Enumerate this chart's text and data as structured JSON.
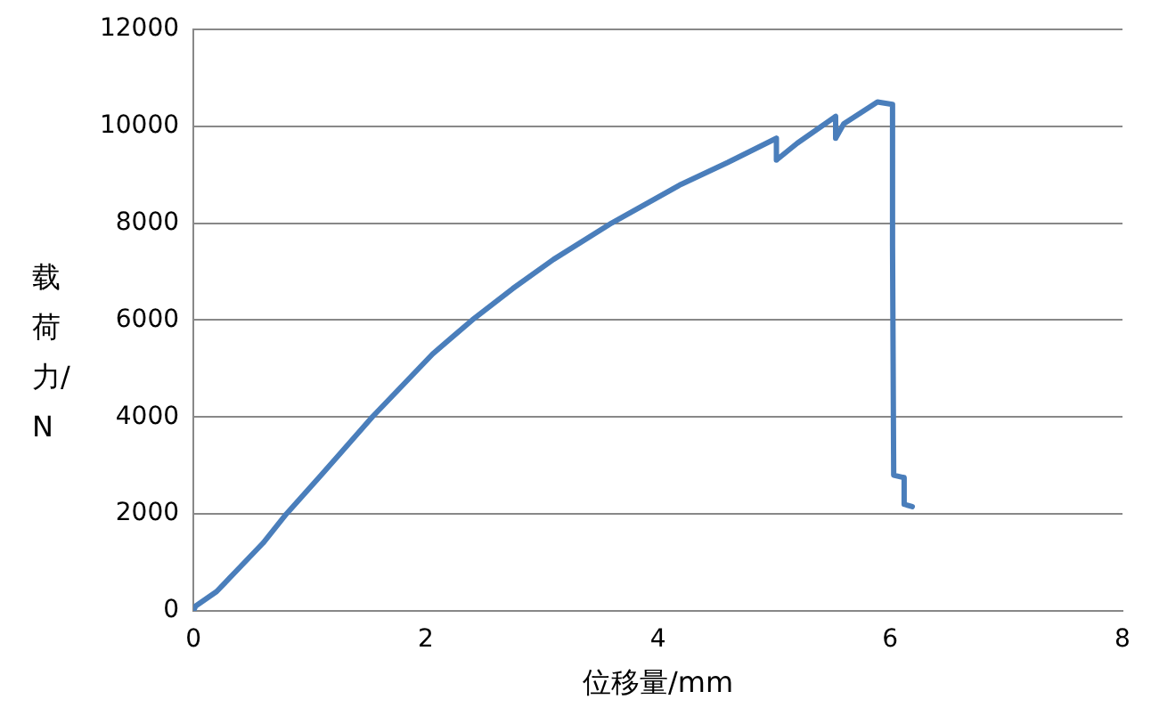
{
  "chart_data": {
    "type": "line",
    "xlabel": "位移量/mm",
    "ylabel": "载荷力/N",
    "xlim": [
      0,
      8
    ],
    "xticks": [
      0,
      2,
      4,
      6,
      8
    ],
    "ylim": [
      0,
      12000
    ],
    "yticks": [
      0,
      2000,
      4000,
      6000,
      8000,
      10000,
      12000
    ],
    "grid": "y",
    "legend": false,
    "marker": "none",
    "line_style": "solid",
    "series": [
      {
        "color": "#4a7ebb",
        "x": [
          0,
          0.02,
          0.2,
          0.38,
          0.6,
          0.8,
          1.1,
          1.54,
          2.06,
          2.4,
          2.75,
          3.1,
          3.6,
          4.2,
          4.6,
          5.02,
          5.02,
          5.2,
          5.53,
          5.53,
          5.6,
          5.89,
          6.02,
          6.02,
          6.03,
          6.12,
          6.12,
          6.19
        ],
        "values": [
          0,
          100,
          400,
          850,
          1400,
          2000,
          2800,
          4000,
          5300,
          6000,
          6650,
          7250,
          8000,
          8800,
          9250,
          9750,
          9300,
          9650,
          10200,
          9750,
          10050,
          10500,
          10450,
          7550,
          2800,
          2750,
          2200,
          2150
        ]
      }
    ]
  }
}
